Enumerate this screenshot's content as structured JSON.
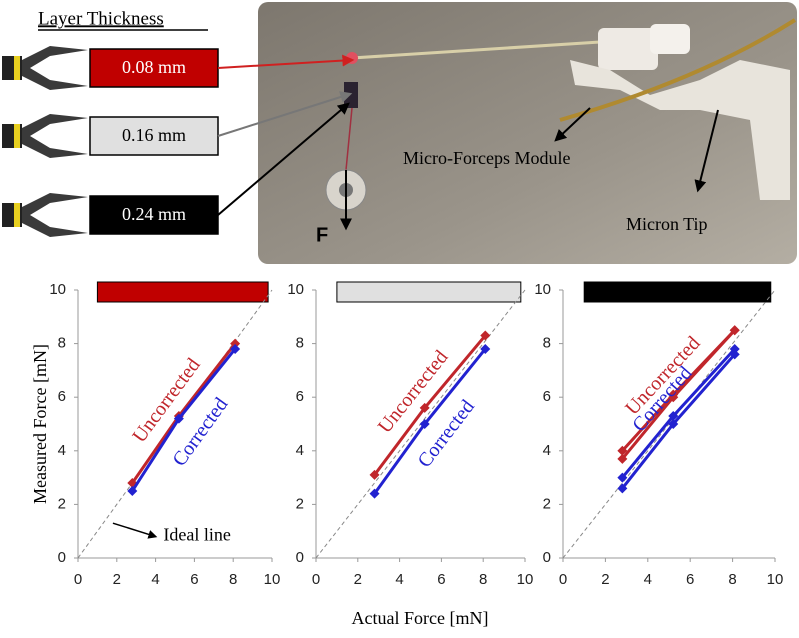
{
  "layer_panel": {
    "title": "Layer Thickness",
    "layers": [
      {
        "label": "0.08 mm",
        "color": "#c00000"
      },
      {
        "label": "0.16 mm",
        "color": "#e0e0e0"
      },
      {
        "label": "0.24 mm",
        "color": "#000000"
      }
    ]
  },
  "photo": {
    "module_label": "Micro-Forceps Module",
    "tip_label": "Micron Tip",
    "force_label": "F"
  },
  "chart_data": [
    {
      "type": "line",
      "header_color": "#c00000",
      "y_label": "Measured Force [mN]",
      "x": [
        2.8,
        5.2,
        8.1
      ],
      "series": [
        {
          "name": "Uncorrected",
          "color": "#c0262b",
          "values": [
            2.8,
            5.3,
            8.0
          ]
        },
        {
          "name": "Corrected",
          "color": "#2222d0",
          "values": [
            2.5,
            5.2,
            7.8
          ]
        }
      ],
      "annotation": "Ideal line",
      "xlim": [
        0,
        10
      ],
      "ylim": [
        0,
        10
      ],
      "xticks": [
        0,
        2,
        4,
        6,
        8,
        10
      ],
      "yticks": [
        0,
        2,
        4,
        6,
        8,
        10
      ]
    },
    {
      "type": "line",
      "header_color": "#e0e0e0",
      "x_label": "Actual Force [mN]",
      "x": [
        2.8,
        5.2,
        8.1
      ],
      "series": [
        {
          "name": "Uncorrected",
          "color": "#c0262b",
          "values": [
            3.1,
            5.6,
            8.3
          ]
        },
        {
          "name": "Corrected",
          "color": "#2222d0",
          "values": [
            2.4,
            5.0,
            7.8
          ]
        }
      ],
      "xlim": [
        0,
        10
      ],
      "ylim": [
        0,
        10
      ],
      "xticks": [
        0,
        2,
        4,
        6,
        8,
        10
      ],
      "yticks": [
        0,
        2,
        4,
        6,
        8,
        10
      ]
    },
    {
      "type": "line",
      "header_color": "#000000",
      "x": [
        2.8,
        5.2,
        8.1
      ],
      "series": [
        {
          "name": "Uncorrected",
          "color": "#c0262b",
          "values": [
            4.0,
            6.1,
            8.5
          ]
        },
        {
          "color": "#c0262b",
          "values": [
            3.7,
            6.0,
            8.5
          ]
        },
        {
          "name": "Corrected",
          "color": "#2222d0",
          "values": [
            3.0,
            5.3,
            7.8
          ]
        },
        {
          "color": "#2222d0",
          "values": [
            2.6,
            5.0,
            7.6
          ]
        }
      ],
      "xlim": [
        0,
        10
      ],
      "ylim": [
        0,
        10
      ],
      "xticks": [
        0,
        2,
        4,
        6,
        8,
        10
      ],
      "yticks": [
        0,
        2,
        4,
        6,
        8,
        10
      ]
    }
  ]
}
